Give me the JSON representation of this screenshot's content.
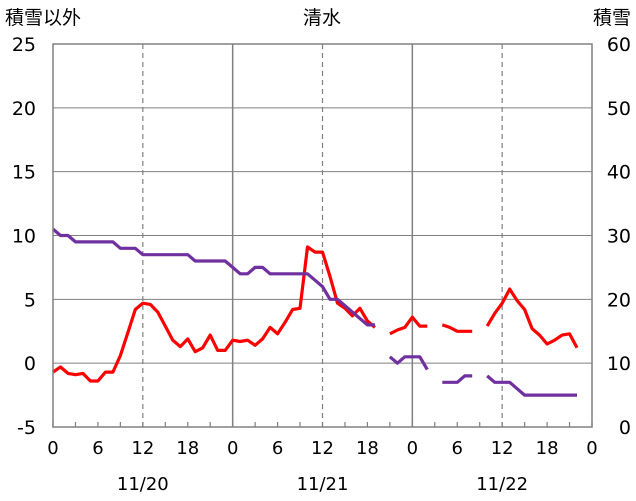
{
  "chart_data": {
    "type": "line",
    "title": "清水",
    "left_axis_label": "積雪以外",
    "right_axis_label": "積雪",
    "left_ylim": [
      -5,
      25
    ],
    "left_ticks": [
      -5,
      0,
      5,
      10,
      15,
      20,
      25
    ],
    "right_ylim": [
      0,
      60
    ],
    "right_ticks": [
      0,
      10,
      20,
      30,
      40,
      50,
      60
    ],
    "xlim": [
      0,
      72
    ],
    "x_unit": "hour",
    "x_tick_step": 3,
    "x_tick_labels": [
      "0",
      "6",
      "12",
      "18",
      "0",
      "6",
      "12",
      "18",
      "0",
      "6",
      "12",
      "18",
      "0"
    ],
    "date_labels": [
      {
        "x": 12,
        "text": "11/20"
      },
      {
        "x": 36,
        "text": "11/21"
      },
      {
        "x": 60,
        "text": "11/22"
      }
    ],
    "day_boundaries": [
      24,
      48
    ],
    "noon_dashed_lines": [
      12,
      36,
      60
    ],
    "grid": true,
    "colors": {
      "temperature": "#ff0000",
      "snow_depth": "#7030a0",
      "grid": "#808080",
      "axis": "#808080"
    },
    "series": [
      {
        "axis": "left",
        "color": "#ff0000",
        "segments": [
          [
            [
              0,
              -0.7
            ],
            [
              1,
              -0.3
            ],
            [
              2,
              -0.8
            ],
            [
              3,
              -0.9
            ],
            [
              4,
              -0.8
            ],
            [
              5,
              -1.4
            ],
            [
              6,
              -1.4
            ],
            [
              7,
              -0.7
            ],
            [
              8,
              -0.7
            ],
            [
              9,
              0.6
            ],
            [
              10,
              2.4
            ],
            [
              11,
              4.2
            ],
            [
              12,
              4.7
            ],
            [
              13,
              4.6
            ],
            [
              14,
              4.0
            ],
            [
              15,
              2.9
            ],
            [
              16,
              1.8
            ],
            [
              17,
              1.3
            ],
            [
              18,
              1.9
            ],
            [
              19,
              0.9
            ],
            [
              20,
              1.2
            ],
            [
              21,
              2.2
            ],
            [
              22,
              1.0
            ],
            [
              23,
              1.0
            ],
            [
              24,
              1.8
            ],
            [
              25,
              1.7
            ],
            [
              26,
              1.8
            ],
            [
              27,
              1.4
            ],
            [
              28,
              1.9
            ],
            [
              29,
              2.8
            ],
            [
              30,
              2.3
            ],
            [
              31,
              3.2
            ],
            [
              32,
              4.2
            ],
            [
              33,
              4.3
            ],
            [
              34,
              9.1
            ],
            [
              35,
              8.7
            ],
            [
              36,
              8.7
            ],
            [
              37,
              6.8
            ],
            [
              38,
              4.7
            ],
            [
              39,
              4.3
            ],
            [
              40,
              3.7
            ],
            [
              41,
              4.3
            ],
            [
              42,
              3.3
            ],
            [
              43,
              2.8
            ]
          ],
          [
            [
              45,
              2.3
            ],
            [
              46,
              2.6
            ],
            [
              47,
              2.8
            ],
            [
              48,
              3.6
            ],
            [
              49,
              2.9
            ],
            [
              50,
              2.9
            ]
          ],
          [
            [
              52,
              3.0
            ],
            [
              53,
              2.8
            ],
            [
              54,
              2.5
            ],
            [
              55,
              2.5
            ],
            [
              56,
              2.5
            ]
          ],
          [
            [
              58,
              2.9
            ],
            [
              59,
              3.9
            ],
            [
              60,
              4.7
            ],
            [
              61,
              5.8
            ],
            [
              62,
              4.9
            ],
            [
              63,
              4.2
            ],
            [
              64,
              2.7
            ],
            [
              65,
              2.2
            ],
            [
              66,
              1.5
            ],
            [
              67,
              1.8
            ],
            [
              68,
              2.2
            ],
            [
              69,
              2.3
            ],
            [
              70,
              1.2
            ]
          ]
        ]
      },
      {
        "axis": "right",
        "color": "#7030a0",
        "segments": [
          [
            [
              0,
              31
            ],
            [
              1,
              30
            ],
            [
              2,
              30
            ],
            [
              3,
              29
            ],
            [
              4,
              29
            ],
            [
              5,
              29
            ],
            [
              6,
              29
            ],
            [
              7,
              29
            ],
            [
              8,
              29
            ],
            [
              9,
              28
            ],
            [
              10,
              28
            ],
            [
              11,
              28
            ],
            [
              12,
              27
            ],
            [
              13,
              27
            ],
            [
              14,
              27
            ],
            [
              15,
              27
            ],
            [
              16,
              27
            ],
            [
              17,
              27
            ],
            [
              18,
              27
            ],
            [
              19,
              26
            ],
            [
              20,
              26
            ],
            [
              21,
              26
            ],
            [
              22,
              26
            ],
            [
              23,
              26
            ],
            [
              24,
              25
            ],
            [
              25,
              24
            ],
            [
              26,
              24
            ],
            [
              27,
              25
            ],
            [
              28,
              25
            ],
            [
              29,
              24
            ],
            [
              30,
              24
            ],
            [
              31,
              24
            ],
            [
              32,
              24
            ],
            [
              33,
              24
            ],
            [
              34,
              24
            ],
            [
              35,
              23
            ],
            [
              36,
              22
            ],
            [
              37,
              20
            ],
            [
              38,
              20
            ],
            [
              39,
              19
            ],
            [
              40,
              18
            ],
            [
              41,
              17
            ],
            [
              42,
              16
            ],
            [
              43,
              16
            ]
          ],
          [
            [
              45,
              11
            ],
            [
              46,
              10
            ],
            [
              47,
              11
            ],
            [
              48,
              11
            ],
            [
              49,
              11
            ],
            [
              50,
              9
            ]
          ],
          [
            [
              52,
              7
            ],
            [
              53,
              7
            ],
            [
              54,
              7
            ],
            [
              55,
              8
            ],
            [
              56,
              8
            ]
          ],
          [
            [
              58,
              8
            ],
            [
              59,
              7
            ],
            [
              60,
              7
            ],
            [
              61,
              7
            ],
            [
              62,
              6
            ],
            [
              63,
              5
            ],
            [
              64,
              5
            ],
            [
              65,
              5
            ],
            [
              66,
              5
            ],
            [
              67,
              5
            ],
            [
              68,
              5
            ],
            [
              69,
              5
            ],
            [
              70,
              5
            ]
          ]
        ]
      }
    ]
  }
}
